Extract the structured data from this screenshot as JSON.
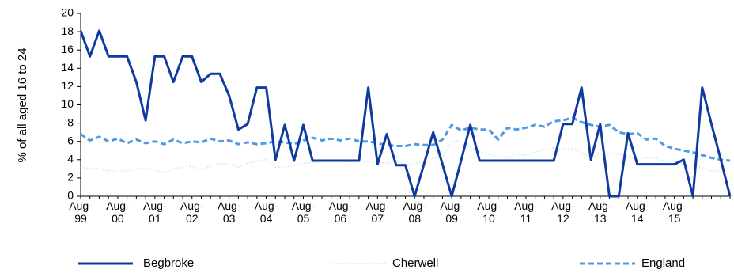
{
  "chart_data": {
    "type": "line",
    "ylabel": "% of all aged 16 to 24",
    "xlabel": "",
    "ylim": [
      0,
      20
    ],
    "ytick_step": 2,
    "grid": false,
    "legend_position": "bottom",
    "x_tick_labels": [
      [
        "Aug-",
        "99"
      ],
      [
        "Aug-",
        "00"
      ],
      [
        "Aug-",
        "01"
      ],
      [
        "Aug-",
        "02"
      ],
      [
        "Aug-",
        "03"
      ],
      [
        "Aug-",
        "04"
      ],
      [
        "Aug-",
        "05"
      ],
      [
        "Aug-",
        "06"
      ],
      [
        "Aug-",
        "07"
      ],
      [
        "Aug-",
        "08"
      ],
      [
        "Aug-",
        "09"
      ],
      [
        "Aug-",
        "10"
      ],
      [
        "Aug-",
        "11"
      ],
      [
        "Aug-",
        "12"
      ],
      [
        "Aug-",
        "13"
      ],
      [
        "Aug-",
        "14"
      ],
      [
        "Aug-",
        "15"
      ]
    ],
    "periods_per_label": 4,
    "series": [
      {
        "name": "Begbroke",
        "color": "#0f3a9e",
        "style": "solid",
        "values": [
          18.1,
          15.3,
          18.1,
          15.3,
          15.3,
          15.3,
          12.5,
          8.3,
          15.3,
          15.3,
          12.5,
          15.3,
          15.3,
          12.5,
          13.4,
          13.4,
          11.0,
          7.3,
          7.9,
          11.9,
          11.9,
          4.0,
          7.8,
          3.9,
          7.8,
          3.9,
          3.9,
          3.9,
          3.9,
          3.9,
          3.9,
          11.9,
          3.5,
          6.8,
          3.4,
          3.4,
          0.0,
          3.5,
          7.0,
          3.5,
          0.0,
          3.9,
          7.8,
          3.9,
          3.9,
          3.9,
          3.9,
          3.9,
          3.9,
          3.9,
          3.9,
          3.9,
          7.9,
          7.9,
          11.9,
          4.0,
          7.9,
          0.0,
          0.0,
          6.9,
          3.5,
          3.5,
          3.5,
          3.5,
          3.5,
          4.0,
          0.0,
          11.9,
          7.9,
          4.0,
          0.0
        ]
      },
      {
        "name": "Cherwell",
        "color": "#d7e6f6",
        "style": "dotted",
        "values": [
          3.2,
          3.0,
          3.0,
          2.8,
          2.7,
          2.8,
          3.0,
          3.0,
          2.9,
          2.6,
          3.0,
          3.2,
          3.3,
          2.9,
          3.3,
          3.6,
          3.5,
          3.2,
          3.6,
          3.9,
          4.0,
          3.2,
          3.2,
          3.4,
          3.6,
          3.7,
          3.8,
          3.9,
          3.9,
          3.8,
          3.8,
          3.8,
          3.7,
          3.6,
          3.8,
          3.5,
          3.6,
          3.9,
          4.2,
          4.2,
          6.0,
          6.1,
          5.4,
          4.9,
          4.6,
          4.3,
          4.2,
          4.6,
          4.5,
          4.8,
          5.1,
          5.3,
          5.2,
          5.2,
          4.8,
          4.3,
          4.6,
          4.7,
          4.6,
          4.4,
          4.0,
          4.2,
          4.2,
          3.8,
          3.9,
          3.5,
          3.4,
          3.1,
          2.8,
          2.7,
          2.5
        ]
      },
      {
        "name": "England",
        "color": "#4d9ae6",
        "style": "dashed",
        "values": [
          6.8,
          6.1,
          6.5,
          6.0,
          6.3,
          5.8,
          6.2,
          5.8,
          6.0,
          5.7,
          6.2,
          5.8,
          6.0,
          5.9,
          6.3,
          6.0,
          6.1,
          5.7,
          5.9,
          5.7,
          5.8,
          6.0,
          5.9,
          5.7,
          6.1,
          6.4,
          6.1,
          6.3,
          6.1,
          6.3,
          6.0,
          6.0,
          5.8,
          5.6,
          5.5,
          5.5,
          5.7,
          5.6,
          5.6,
          6.2,
          7.8,
          7.2,
          7.5,
          7.3,
          7.3,
          6.2,
          7.5,
          7.3,
          7.5,
          7.8,
          7.6,
          8.2,
          8.3,
          8.6,
          8.1,
          7.8,
          7.6,
          7.8,
          7.0,
          6.8,
          6.9,
          6.2,
          6.3,
          5.5,
          5.2,
          5.0,
          4.8,
          4.5,
          4.2,
          4.0,
          3.9
        ]
      }
    ]
  }
}
